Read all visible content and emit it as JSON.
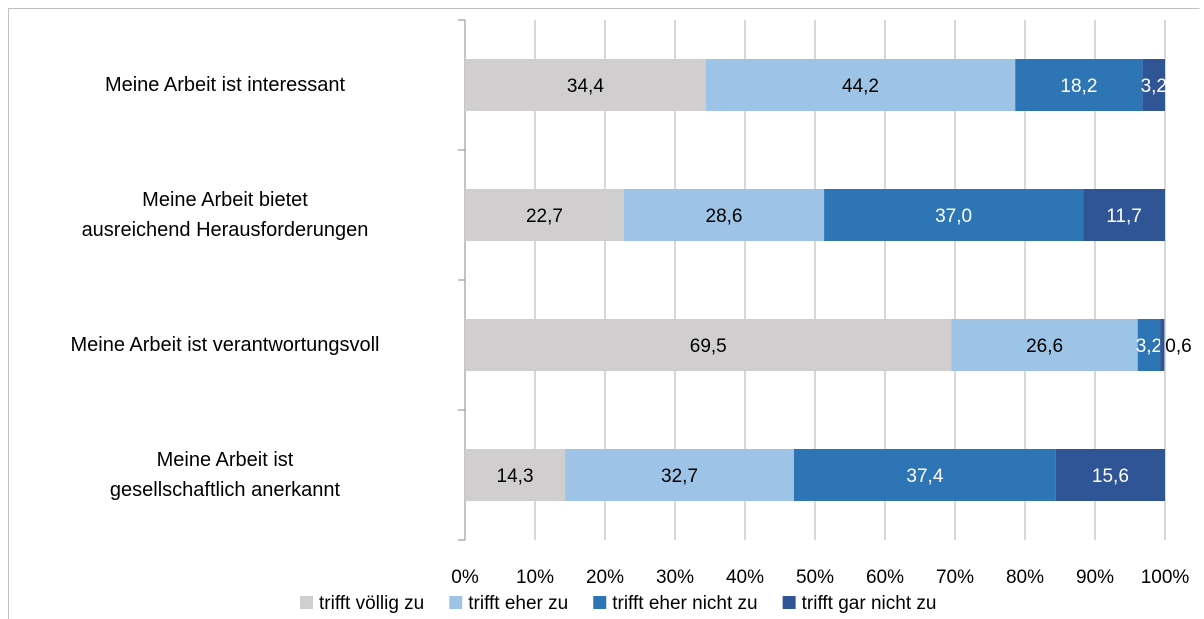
{
  "chart_data": {
    "type": "bar",
    "orientation": "horizontal",
    "stacked": true,
    "categories": [
      "Meine Arbeit ist interessant",
      "Meine Arbeit bietet\nausreichend Herausforderungen",
      "Meine Arbeit ist verantwortungsvoll",
      "Meine Arbeit ist\ngesellschaftlich anerkannt"
    ],
    "series": [
      {
        "name": "trifft völlig zu",
        "color": "#d0cece",
        "label_color": "#000000",
        "values": [
          34.4,
          22.7,
          69.5,
          14.3
        ],
        "value_labels": [
          "34,4",
          "22,7",
          "69,5",
          "14,3"
        ]
      },
      {
        "name": "trifft eher zu",
        "color": "#9dc3e6",
        "label_color": "#000000",
        "values": [
          44.2,
          28.6,
          26.6,
          32.7
        ],
        "value_labels": [
          "44,2",
          "28,6",
          "26,6",
          "32,7"
        ]
      },
      {
        "name": "trifft eher nicht zu",
        "color": "#2e75b6",
        "label_color": "#ffffff",
        "values": [
          18.2,
          37.0,
          3.2,
          37.4
        ],
        "value_labels": [
          "18,2",
          "37,0",
          "3,2",
          "37,4"
        ]
      },
      {
        "name": "trifft gar nicht zu",
        "color": "#2f5597",
        "label_color": "#ffffff",
        "values": [
          3.2,
          11.7,
          0.6,
          15.6
        ],
        "value_labels": [
          "3,2",
          "11,7",
          "0,6",
          "15,6"
        ]
      }
    ],
    "xlim": [
      0,
      100
    ],
    "xticks": [
      {
        "value": 0,
        "label": "0%"
      },
      {
        "value": 10,
        "label": "10%"
      },
      {
        "value": 20,
        "label": "20%"
      },
      {
        "value": 30,
        "label": "30%"
      },
      {
        "value": 40,
        "label": "40%"
      },
      {
        "value": 50,
        "label": "50%"
      },
      {
        "value": 60,
        "label": "60%"
      },
      {
        "value": 70,
        "label": "70%"
      },
      {
        "value": 80,
        "label": "80%"
      },
      {
        "value": 90,
        "label": "90%"
      },
      {
        "value": 100,
        "label": "100%"
      }
    ],
    "grid": true,
    "legend": "bottom"
  }
}
